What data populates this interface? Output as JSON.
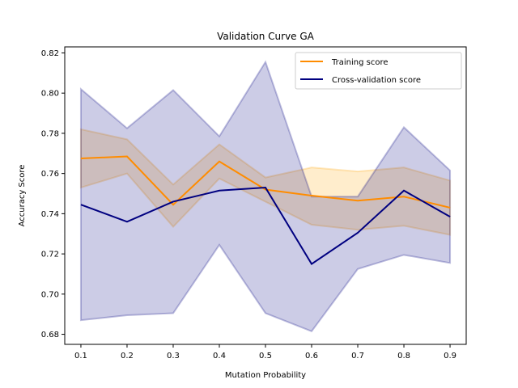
{
  "chart_data": {
    "type": "line",
    "title": "Validation Curve GA",
    "xlabel": "Mutation Probability",
    "ylabel": "Accuracy Score",
    "x": [
      0.1,
      0.2,
      0.3,
      0.4,
      0.5,
      0.6,
      0.7,
      0.8,
      0.9
    ],
    "xlim": [
      0.065,
      0.935
    ],
    "ylim": [
      0.675,
      0.823
    ],
    "x_ticks": [
      "0.1",
      "0.2",
      "0.3",
      "0.4",
      "0.5",
      "0.6",
      "0.7",
      "0.8",
      "0.9"
    ],
    "y_ticks": [
      "0.68",
      "0.70",
      "0.72",
      "0.74",
      "0.76",
      "0.78",
      "0.80",
      "0.82"
    ],
    "grid": false,
    "legend_position": "top-right",
    "series": [
      {
        "name": "Training score",
        "color": "#ff8c00",
        "values": [
          0.7675,
          0.7685,
          0.7445,
          0.766,
          0.752,
          0.749,
          0.7465,
          0.7485,
          0.743
        ],
        "band_upper": [
          0.782,
          0.777,
          0.7545,
          0.7745,
          0.758,
          0.763,
          0.761,
          0.763,
          0.7565
        ],
        "band_lower": [
          0.753,
          0.76,
          0.7335,
          0.7575,
          0.746,
          0.7345,
          0.732,
          0.734,
          0.7295
        ],
        "band_color": "#ffa500"
      },
      {
        "name": "Cross-validation score",
        "color": "#000080",
        "values": [
          0.7445,
          0.736,
          0.746,
          0.7515,
          0.753,
          0.715,
          0.7305,
          0.7515,
          0.7385
        ],
        "band_upper": [
          0.802,
          0.7825,
          0.8015,
          0.7785,
          0.8155,
          0.7485,
          0.7485,
          0.783,
          0.7615
        ],
        "band_lower": [
          0.687,
          0.6895,
          0.6905,
          0.7245,
          0.6905,
          0.6815,
          0.7125,
          0.7195,
          0.7155
        ],
        "band_color": "#000080"
      }
    ]
  }
}
